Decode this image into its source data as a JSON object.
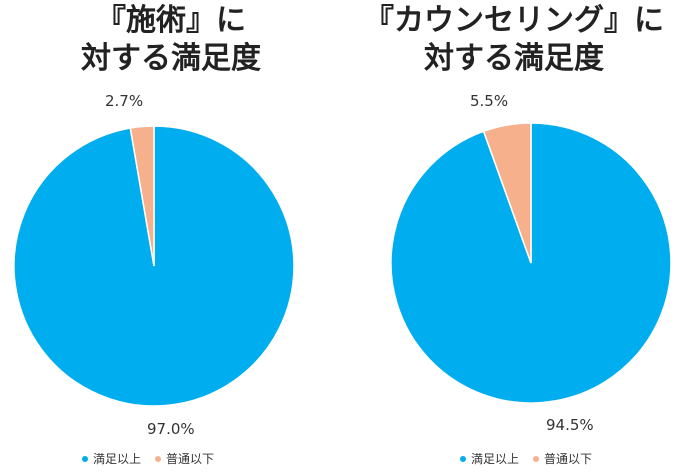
{
  "colors": {
    "satisfied": "#00adef",
    "below": "#f6b08b"
  },
  "chart_data": [
    {
      "type": "pie",
      "title_lines": [
        "『施術』に",
        "対する満足度"
      ],
      "categories": [
        "満足以上",
        "普通以下"
      ],
      "values": [
        97.0,
        2.7
      ],
      "data_labels": [
        "97.0%",
        "2.7%"
      ],
      "legend": [
        "満足以上",
        "普通以下"
      ],
      "legend_position": "bottom"
    },
    {
      "type": "pie",
      "title_lines": [
        "『カウンセリング』に",
        "対する満足度"
      ],
      "categories": [
        "満足以上",
        "普通以下"
      ],
      "values": [
        94.5,
        5.5
      ],
      "data_labels": [
        "94.5%",
        "5.5%"
      ],
      "legend": [
        "満足以上",
        "普通以下"
      ],
      "legend_position": "bottom"
    }
  ]
}
